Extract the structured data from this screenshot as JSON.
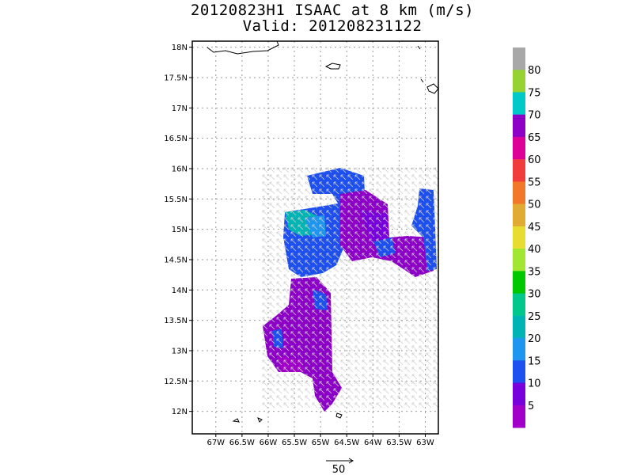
{
  "title": {
    "line1": "20120823H1 ISAAC at 8 km (m/s)",
    "line2": "Valid: 201208231122"
  },
  "map": {
    "lat_labels": [
      "18N",
      "17.5N",
      "17N",
      "16.5N",
      "16N",
      "15.5N",
      "15N",
      "14.5N",
      "14N",
      "13.5N",
      "13N",
      "12.5N",
      "12N"
    ],
    "lat_values": [
      18,
      17.5,
      17,
      16.5,
      16,
      15.5,
      15,
      14.5,
      14,
      13.5,
      13,
      12.5,
      12
    ],
    "lon_labels": [
      "67W",
      "66.5W",
      "66W",
      "65.5W",
      "65W",
      "64.5W",
      "64W",
      "63.5W",
      "63W"
    ],
    "lon_values": [
      -67,
      -66.5,
      -66,
      -65.5,
      -65,
      -64.5,
      -64,
      -63.5,
      -63
    ],
    "lat_range": [
      11.63,
      18.1
    ],
    "lon_range": [
      -67.45,
      -62.75
    ]
  },
  "colorbar": {
    "labels": [
      "80",
      "75",
      "70",
      "65",
      "60",
      "55",
      "50",
      "45",
      "40",
      "35",
      "30",
      "25",
      "20",
      "15",
      "10",
      "5"
    ],
    "colors": [
      "#a8a8a8",
      "#96d232",
      "#00c8c8",
      "#8c00c8",
      "#dc0096",
      "#f03c3c",
      "#f07828",
      "#e1aa32",
      "#e6dc32",
      "#a0e632",
      "#00c800",
      "#00c88c",
      "#00b4b4",
      "#1e96f0",
      "#1e50f0",
      "#7800dc",
      "#a000c8"
    ]
  },
  "reference_vector": {
    "label": "50"
  }
}
